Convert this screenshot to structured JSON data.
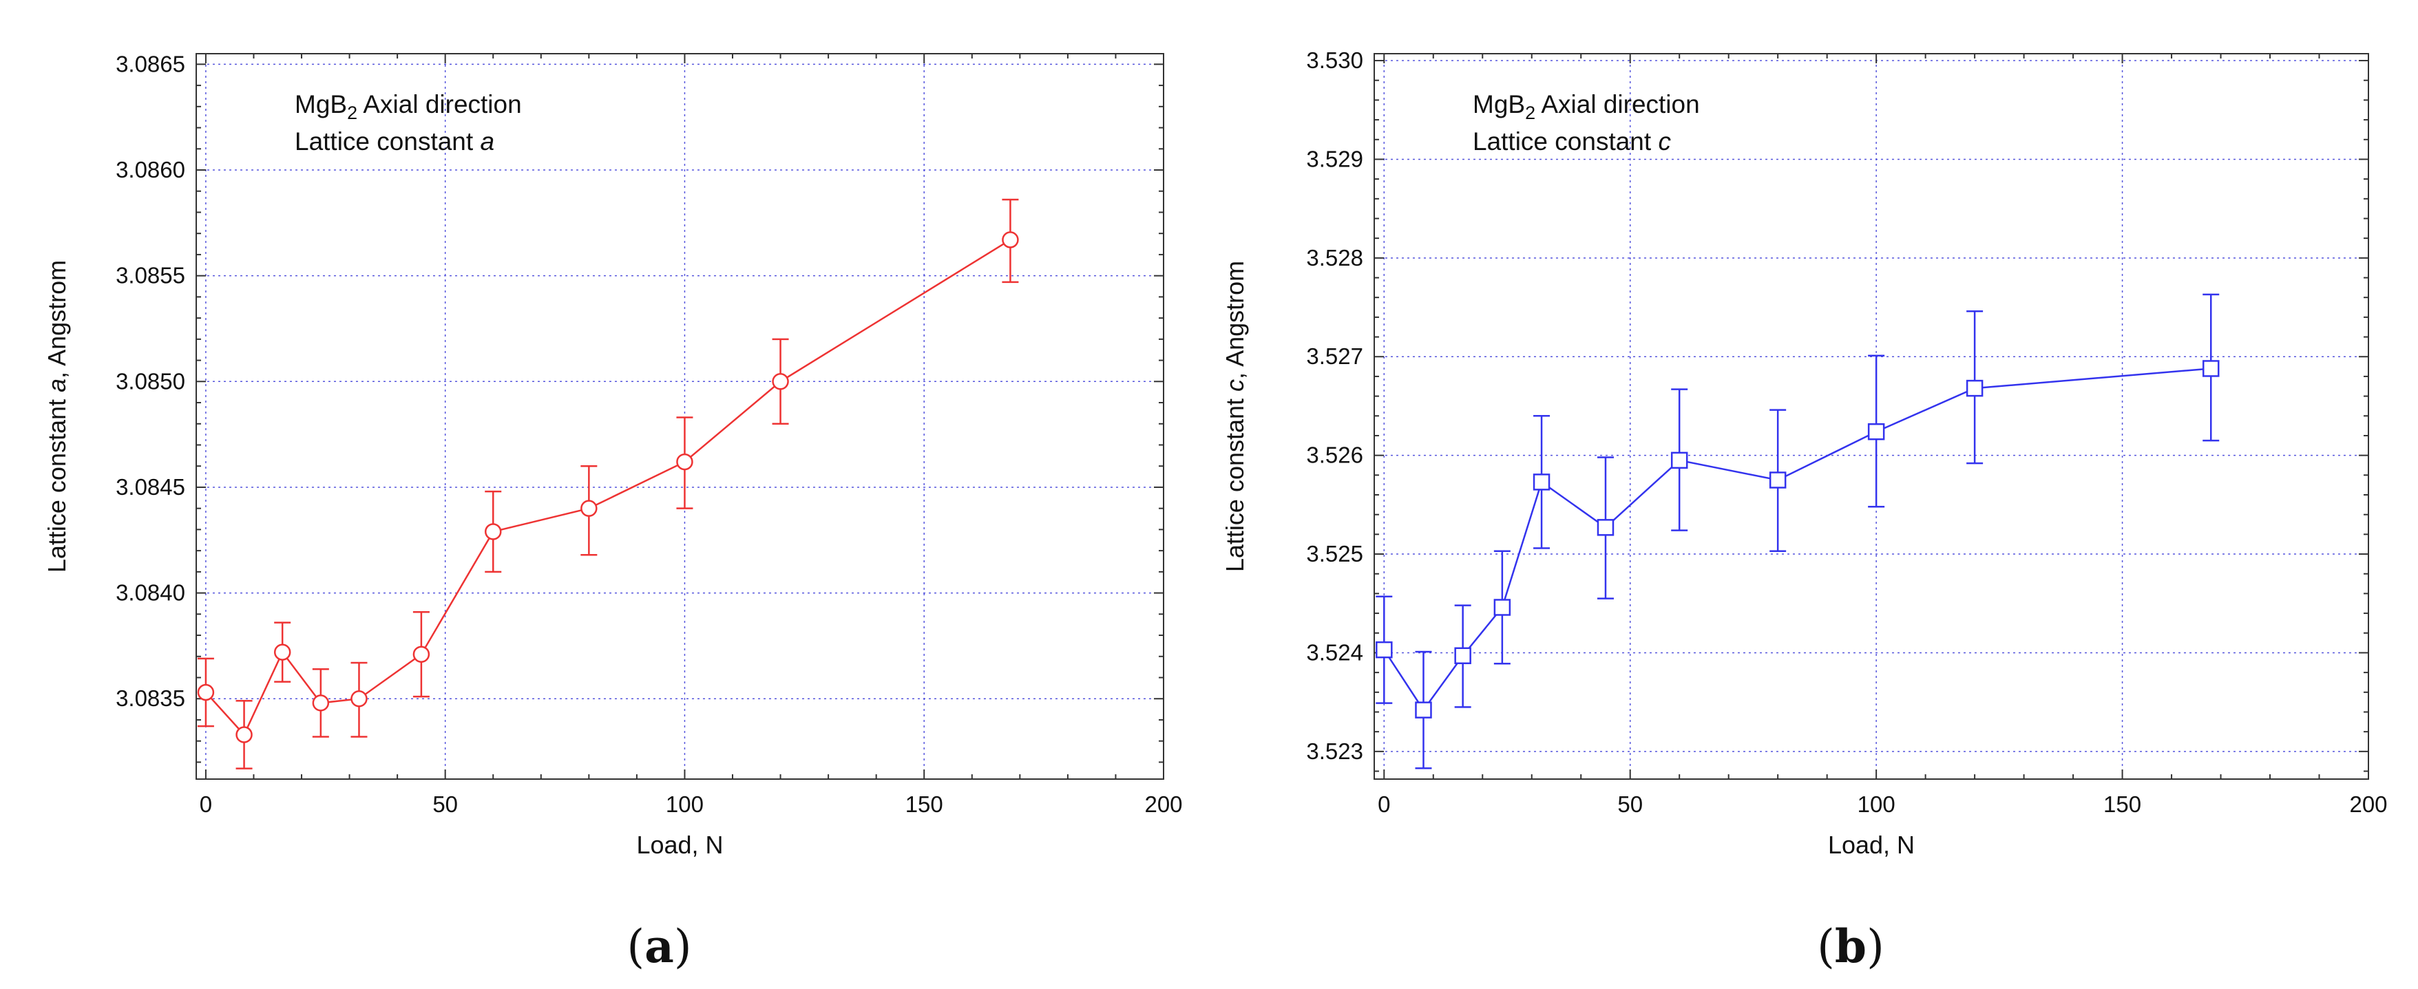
{
  "chart_data": [
    {
      "type": "line",
      "panel_label": "(a)",
      "panel_letter": "a",
      "color": "#ee3333",
      "marker": "circle",
      "annotation": {
        "line1_prefix": "MgB",
        "line1_sub": "2",
        "line1_suffix": " Axial direction",
        "line2_prefix": "Lattice constant ",
        "line2_italic": "a"
      },
      "xlabel": "Load, N",
      "ylabel_prefix": "Lattice constant ",
      "ylabel_italic": "a",
      "ylabel_suffix": ", Angstrom",
      "xlim": [
        -2,
        200
      ],
      "ylim": [
        3.08312,
        3.08655
      ],
      "xticks": [
        0,
        50,
        100,
        150,
        200
      ],
      "xtick_labels": [
        "0",
        "50",
        "100",
        "150",
        "200"
      ],
      "yticks": [
        3.0835,
        3.084,
        3.0845,
        3.085,
        3.0855,
        3.086,
        3.0865
      ],
      "ytick_labels": [
        "3.0835",
        "3.0840",
        "3.0845",
        "3.0850",
        "3.0855",
        "3.0860",
        "3.0865"
      ],
      "grid": true,
      "x": [
        0,
        8,
        16,
        24,
        32,
        45,
        60,
        80,
        100,
        120,
        168
      ],
      "y": [
        3.08353,
        3.08333,
        3.08372,
        3.08348,
        3.0835,
        3.08371,
        3.08429,
        3.0844,
        3.08462,
        3.085,
        3.08567
      ],
      "y_err_low": [
        3.08337,
        3.08317,
        3.08358,
        3.08332,
        3.08332,
        3.08351,
        3.0841,
        3.08418,
        3.0844,
        3.0848,
        3.08547
      ],
      "y_err_high": [
        3.08369,
        3.08349,
        3.08386,
        3.08364,
        3.08367,
        3.08391,
        3.08448,
        3.0846,
        3.08483,
        3.0852,
        3.08586
      ]
    },
    {
      "type": "line",
      "panel_label": "(b)",
      "panel_letter": "b",
      "color": "#3333ee",
      "marker": "square",
      "annotation": {
        "line1_prefix": "MgB",
        "line1_sub": "2",
        "line1_suffix": " Axial direction",
        "line2_prefix": "Lattice constant ",
        "line2_italic": "c"
      },
      "xlabel": "Load, N",
      "ylabel_prefix": "Lattice constant ",
      "ylabel_italic": "c",
      "ylabel_suffix": ", Angstrom",
      "xlim": [
        -2,
        200
      ],
      "ylim": [
        3.52272,
        3.53007
      ],
      "xticks": [
        0,
        50,
        100,
        150,
        200
      ],
      "xtick_labels": [
        "0",
        "50",
        "100",
        "150",
        "200"
      ],
      "yticks": [
        3.523,
        3.524,
        3.525,
        3.526,
        3.527,
        3.528,
        3.529,
        3.53
      ],
      "ytick_labels": [
        "3.523",
        "3.524",
        "3.525",
        "3.526",
        "3.527",
        "3.528",
        "3.529",
        "3.530"
      ],
      "grid": true,
      "x": [
        0,
        8,
        16,
        24,
        32,
        45,
        60,
        80,
        100,
        120,
        168
      ],
      "y": [
        3.52403,
        3.52342,
        3.52397,
        3.52446,
        3.52573,
        3.52527,
        3.52595,
        3.52575,
        3.52624,
        3.52668,
        3.52688
      ],
      "y_err_low": [
        3.52349,
        3.52283,
        3.52345,
        3.52389,
        3.52506,
        3.52455,
        3.52524,
        3.52503,
        3.52548,
        3.52592,
        3.52615
      ],
      "y_err_high": [
        3.52457,
        3.52401,
        3.52448,
        3.52503,
        3.5264,
        3.52598,
        3.52667,
        3.52646,
        3.52701,
        3.52746,
        3.52763
      ]
    }
  ]
}
